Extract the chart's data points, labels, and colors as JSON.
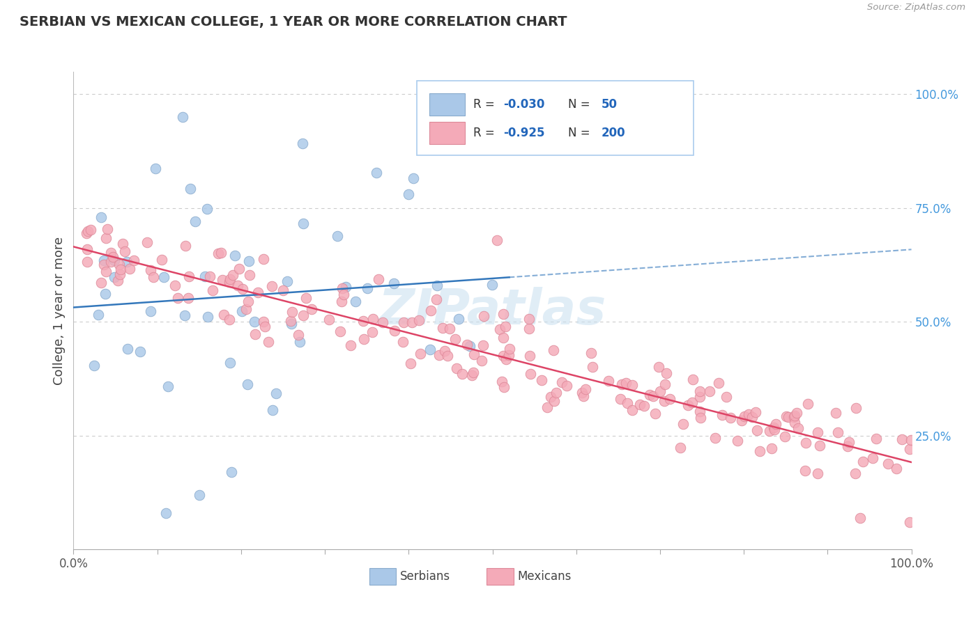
{
  "title": "SERBIAN VS MEXICAN COLLEGE, 1 YEAR OR MORE CORRELATION CHART",
  "source": "Source: ZipAtlas.com",
  "ylabel": "College, 1 year or more",
  "xlim": [
    0.0,
    1.0
  ],
  "ylim": [
    0.0,
    1.05
  ],
  "serbian_color": "#aac8e8",
  "mexican_color": "#f4aab8",
  "serbian_edge": "#88aacc",
  "mexican_edge": "#dd8898",
  "line_serbian_color": "#3377bb",
  "line_mexican_color": "#dd4466",
  "grid_color": "#cccccc",
  "background_color": "#ffffff",
  "R_serbian": -0.03,
  "N_serbian": 50,
  "R_mexican": -0.925,
  "N_mexican": 200,
  "watermark": "ZIPatlas",
  "title_fontsize": 14,
  "axis_fontsize": 12,
  "right_tick_color": "#4499dd"
}
